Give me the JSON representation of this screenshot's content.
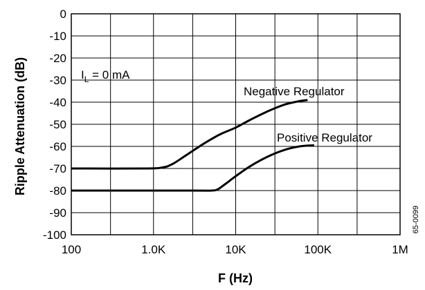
{
  "chart_data": {
    "type": "line",
    "title": "",
    "xlabel": "F (Hz)",
    "ylabel": "Ripple Attenuation (dB)",
    "x_scale": "log",
    "xlim": [
      100,
      1000000
    ],
    "ylim": [
      -100,
      0
    ],
    "x_ticks": [
      100,
      1000,
      10000,
      100000,
      1000000
    ],
    "x_tick_labels": [
      "100",
      "1.0K",
      "10K",
      "100K",
      "1M"
    ],
    "y_ticks": [
      0,
      -10,
      -20,
      -30,
      -40,
      -50,
      -60,
      -70,
      -80,
      -90,
      -100
    ],
    "y_tick_labels": [
      "0",
      "-10",
      "-20",
      "-30",
      "-40",
      "-50",
      "-60",
      "-70",
      "-80",
      "-90",
      "-100"
    ],
    "grid": true,
    "condition_label": {
      "prefix": "I",
      "subscript": "L",
      "suffix": " =  0 mA"
    },
    "series": [
      {
        "name": "Negative Regulator",
        "x": [
          100,
          800,
          1300,
          1700,
          2500,
          4000,
          6500,
          10000,
          15000,
          25000,
          40000,
          60000,
          75000
        ],
        "y": [
          -70,
          -70,
          -69.5,
          -68,
          -64,
          -59,
          -54.5,
          -51.5,
          -48,
          -44,
          -41,
          -39.5,
          -39
        ]
      },
      {
        "name": "Positive Regulator",
        "x": [
          100,
          3000,
          5000,
          6000,
          7500,
          10000,
          15000,
          25000,
          40000,
          60000,
          90000
        ],
        "y": [
          -80,
          -80,
          -80,
          -79.5,
          -77,
          -73.5,
          -69,
          -64.5,
          -61.5,
          -60,
          -59.5
        ]
      }
    ],
    "series_label_placement": [
      "above curve near right end",
      "above curve near right end"
    ],
    "figure_code": "65-0099"
  }
}
